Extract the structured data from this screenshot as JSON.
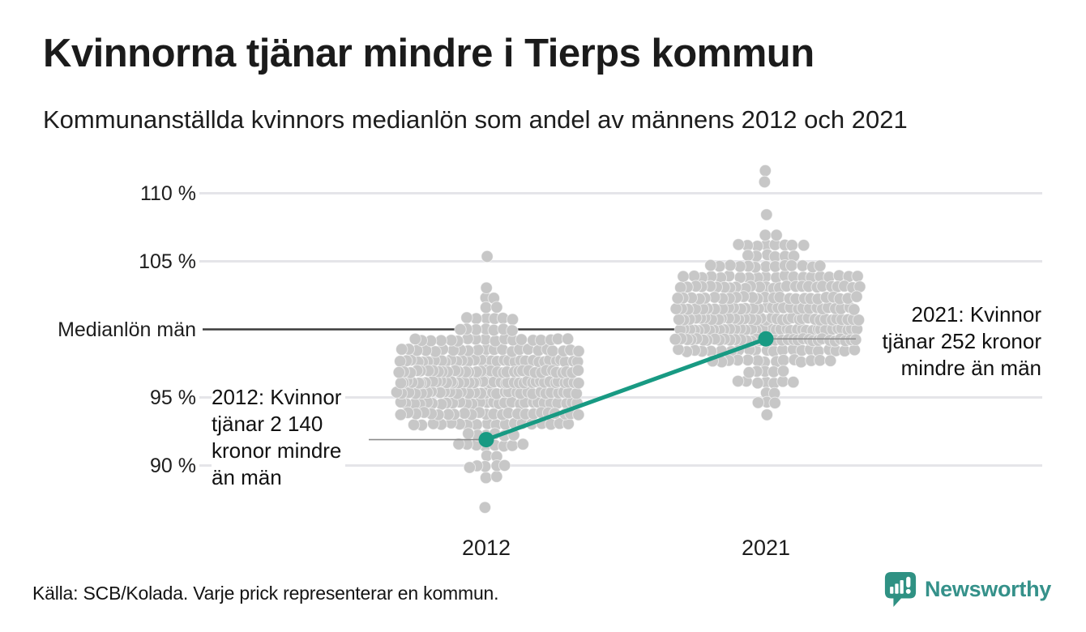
{
  "header": {
    "title": "Kvinnorna tjänar mindre i Tierps kommun",
    "subtitle": "Kommunanställda kvinnors medianlön som andel av männens 2012 och 2021"
  },
  "footer": {
    "source": "Källa: SCB/Kolada. Varje prick representerar en kommun."
  },
  "logo": {
    "brand": "Newsworthy",
    "icon": "speech-bubble-bar-chart-icon",
    "icon_color": "#2f9183",
    "text_color": "#35918a"
  },
  "colors": {
    "accent": "#189a83",
    "dot": "#c7c7c7",
    "grid": "#e5e5e9",
    "median_line": "#3b3b3b",
    "leader": "#8c8c8c",
    "text": "#1b1b1b"
  },
  "chart_data": {
    "type": "beeswarm",
    "title": "Kvinnorna tjänar mindre i Tierps kommun",
    "subtitle": "Kommunanställda kvinnors medianlön som andel av männens 2012 och 2021",
    "unit": "procent av männens medianlön",
    "grid": "horizontal",
    "legend": null,
    "x_categories": [
      "2012",
      "2021"
    ],
    "y_axis": {
      "range": [
        86,
        112.5
      ],
      "baseline_value": 100,
      "baseline_label": "Medianlön män",
      "ticks": [
        {
          "value": 110,
          "label": "110 %"
        },
        {
          "value": 105,
          "label": "105 %"
        },
        {
          "value": 100,
          "label": "Medianlön män"
        },
        {
          "value": 95,
          "label": "95 %"
        },
        {
          "value": 90,
          "label": "90 %"
        }
      ]
    },
    "groups": [
      {
        "label": "2012",
        "n": 290,
        "mean": 96.2,
        "sd": 2.5,
        "clamp": [
          89.2,
          105.4
        ],
        "outliers": [
          86.5,
          105.3
        ]
      },
      {
        "label": "2021",
        "n": 290,
        "mean": 100.9,
        "sd": 2.6,
        "clamp": [
          93.4,
          109.5
        ],
        "outliers": [
          111.6,
          110.7
        ]
      }
    ],
    "highlight": {
      "name": "Tierps kommun",
      "series": [
        {
          "x": "2012",
          "value": 91.9
        },
        {
          "x": "2021",
          "value": 99.3
        }
      ]
    },
    "annotations": [
      {
        "id": "ann-2012",
        "text": "2012: Kvinnor\ntjänar 2 140\nkronor mindre\nän män"
      },
      {
        "id": "ann-2021",
        "text": "2021: Kvinnor\ntjänar 252 kronor\nmindre än män"
      }
    ],
    "dots_note": "Varje prick representerar en kommun"
  }
}
